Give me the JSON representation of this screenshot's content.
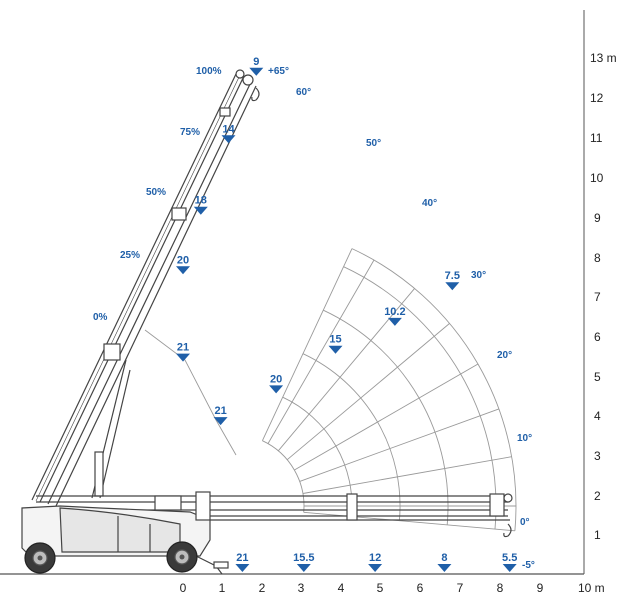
{
  "chart_data": {
    "type": "crane-load-chart",
    "x_axis": {
      "ticks": [
        "0",
        "1",
        "2",
        "3",
        "4",
        "5",
        "6",
        "7",
        "8",
        "9"
      ],
      "unit": "10 m",
      "range": [
        0,
        10
      ]
    },
    "y_axis": {
      "ticks": [
        "1",
        "2",
        "3",
        "4",
        "5",
        "6",
        "7",
        "8",
        "9",
        "10",
        "11",
        "12"
      ],
      "unit": "13 m",
      "range": [
        0,
        13
      ]
    },
    "extension_labels": [
      "100%",
      "75%",
      "50%",
      "25%",
      "0%"
    ],
    "angle_labels": [
      "+65°",
      "60°",
      "50°",
      "40°",
      "30°",
      "20°",
      "10°",
      "0°",
      "-5°"
    ],
    "loads": [
      {
        "value": "9",
        "x": 1.85,
        "y": 12.6
      },
      {
        "value": "14",
        "x": 1.15,
        "y": 10.9
      },
      {
        "value": "18",
        "x": 0.45,
        "y": 9.1
      },
      {
        "value": "20",
        "x": 0.0,
        "y": 7.6
      },
      {
        "value": "7.5",
        "x": 6.8,
        "y": 7.2
      },
      {
        "value": "10.2",
        "x": 5.35,
        "y": 6.3
      },
      {
        "value": "15",
        "x": 3.85,
        "y": 5.6
      },
      {
        "value": "21",
        "x": 0.0,
        "y": 5.4
      },
      {
        "value": "20",
        "x": 2.35,
        "y": 4.6
      },
      {
        "value": "21",
        "x": 0.95,
        "y": 3.8
      },
      {
        "value": "21",
        "x": 1.5,
        "y": 0.1
      },
      {
        "value": "15.5",
        "x": 3.05,
        "y": 0.1
      },
      {
        "value": "12",
        "x": 4.85,
        "y": 0.1
      },
      {
        "value": "8",
        "x": 6.6,
        "y": 0.1
      },
      {
        "value": "5.5",
        "x": 8.25,
        "y": 0.1
      }
    ]
  }
}
